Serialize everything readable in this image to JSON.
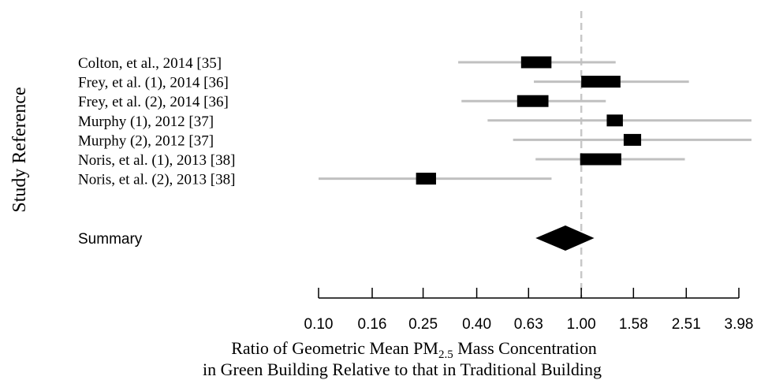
{
  "chart_data": {
    "type": "forest",
    "ylabel": "Study Reference",
    "xlabel_line1_pre": "Ratio of Geometric Mean PM",
    "xlabel_line1_sub": "2.5",
    "xlabel_line1_post": " Mass Concentration",
    "xlabel_line2": "in Green Building Relative to that in Traditional Building",
    "x_scale": "log",
    "xlim": [
      0.1,
      3.98
    ],
    "x_ticks": [
      0.1,
      0.16,
      0.25,
      0.4,
      0.63,
      1.0,
      1.58,
      2.51,
      3.98
    ],
    "x_tick_labels": [
      "0.10",
      "0.16",
      "0.25",
      "0.40",
      "0.63",
      "1.00",
      "1.58",
      "2.51",
      "3.98"
    ],
    "reference_line": 1.0,
    "studies": [
      {
        "label": "Colton, et al., 2014 [35]",
        "estimate": 0.68,
        "ci": [
          0.34,
          1.21
        ],
        "box": [
          0.59,
          0.77
        ]
      },
      {
        "label": "Frey, et al. (1), 2014 [36]",
        "estimate": 1.2,
        "ci": [
          0.66,
          2.3
        ],
        "box": [
          1.0,
          1.41
        ]
      },
      {
        "label": "Frey, et al. (2), 2014 [36]",
        "estimate": 0.66,
        "ci": [
          0.35,
          1.11
        ],
        "box": [
          0.57,
          0.75
        ]
      },
      {
        "label": "Murphy (1), 2012 [37]",
        "estimate": 1.34,
        "ci": [
          0.44,
          4.0
        ],
        "box": [
          1.25,
          1.44
        ]
      },
      {
        "label": "Murphy (2), 2012 [37]",
        "estimate": 1.56,
        "ci": [
          0.55,
          4.0
        ],
        "box": [
          1.45,
          1.69
        ]
      },
      {
        "label": "Noris, et al. (1), 2013 [38]",
        "estimate": 1.2,
        "ci": [
          0.67,
          2.22
        ],
        "box": [
          0.99,
          1.42
        ]
      },
      {
        "label": "Noris, et al. (2), 2013 [38]",
        "estimate": 0.26,
        "ci": [
          0.1,
          0.69
        ],
        "box": [
          0.235,
          0.28
        ]
      }
    ],
    "summary": {
      "label": "Summary",
      "estimate": 0.87,
      "ci": [
        0.67,
        1.12
      ]
    },
    "colors": {
      "ci_line": "#c0c0c0",
      "box": "#000000",
      "ref_line": "#c8c8c8",
      "axis": "#000000"
    }
  }
}
